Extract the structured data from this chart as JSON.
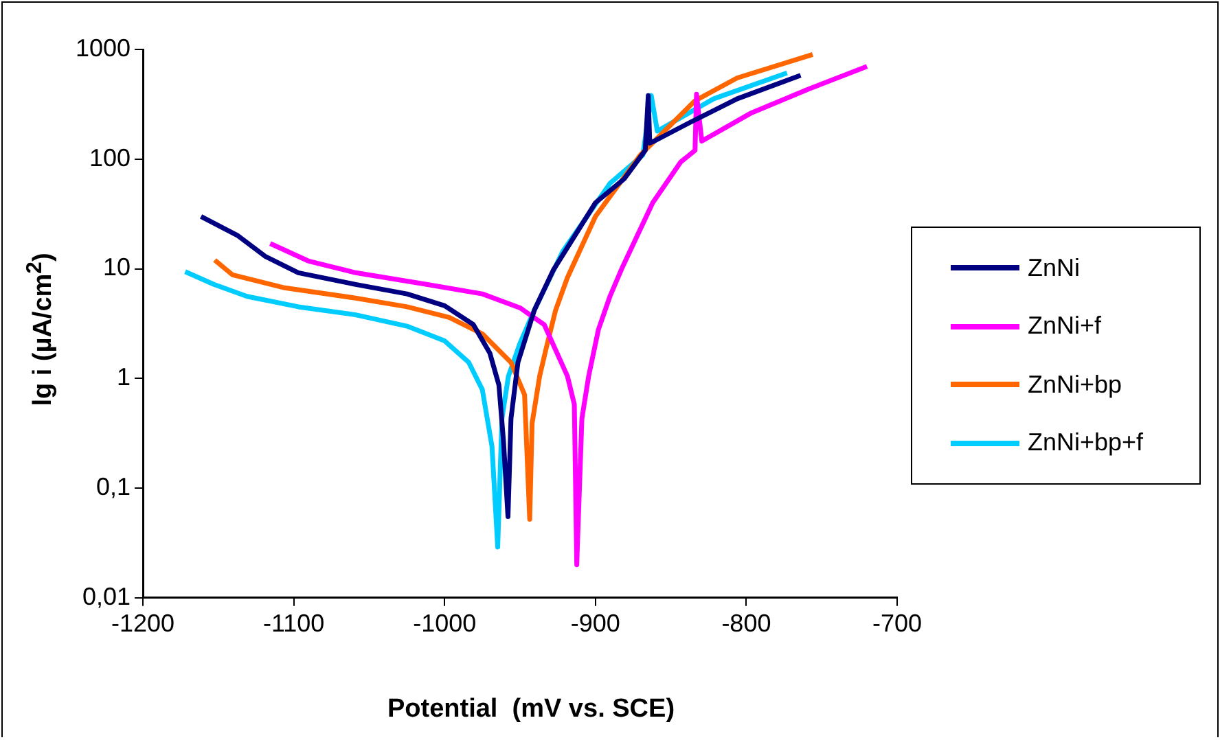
{
  "chart_data": {
    "type": "line",
    "xlabel": "Potential  (mV vs. SCE)",
    "ylabel": "lg i (µA/cm$^{2}$)",
    "log": true,
    "xlim": [
      -1200,
      -700
    ],
    "xticks": [
      -1200,
      -1100,
      -1000,
      -900,
      -800,
      -700
    ],
    "ylim": [
      0.01,
      1000
    ],
    "yticks": [
      {
        "value": 0.01,
        "label": "0,01"
      },
      {
        "value": 0.1,
        "label": "0,1"
      },
      1,
      10,
      100,
      1000
    ],
    "grid": false,
    "legend": "right",
    "marker": "none",
    "line_style": "solid",
    "series": [
      {
        "name": "ZnNi",
        "color": "#000080",
        "x": [
          -1161.5,
          -1137,
          -1119,
          -1097,
          -1059,
          -1025,
          -1000,
          -981,
          -970,
          -964,
          -961,
          -958,
          -956,
          -951.4,
          -940.5,
          -928,
          -900,
          -881,
          -867,
          -865,
          -864,
          -861,
          -837,
          -806,
          -764
        ],
        "values": [
          30,
          20,
          13,
          9.2,
          7.2,
          5.9,
          4.6,
          3.1,
          1.7,
          0.87,
          0.27,
          0.055,
          0.43,
          1.4,
          4.2,
          9.7,
          40,
          66,
          120,
          380,
          140,
          146,
          217,
          355,
          580
        ]
      },
      {
        "name": "ZnNi+f",
        "color": "#ff00ff",
        "x": [
          -1115.6,
          -1090.5,
          -1059,
          -1012,
          -975,
          -950,
          -934,
          -918.6,
          -914,
          -912.4,
          -909,
          -904.5,
          -898,
          -890.4,
          -882.6,
          -862,
          -843.5,
          -834,
          -833,
          -829.5,
          -796.6,
          -759,
          -720
        ],
        "values": [
          17,
          11.8,
          9.2,
          7.2,
          5.9,
          4.4,
          3.1,
          1.05,
          0.58,
          0.02,
          0.43,
          1.05,
          2.8,
          5.6,
          10,
          40,
          94,
          120,
          390,
          146,
          264,
          433,
          700
        ]
      },
      {
        "name": "ZnNi+bp",
        "color": "#ff6600",
        "x": [
          -1152.4,
          -1140.6,
          -1106,
          -1059,
          -1025,
          -997,
          -975,
          -956,
          -947,
          -943.6,
          -942,
          -937,
          -932.6,
          -926.4,
          -918.6,
          -900,
          -870,
          -834,
          -806,
          -756
        ],
        "values": [
          12,
          8.8,
          6.7,
          5.4,
          4.5,
          3.6,
          2.55,
          1.4,
          0.71,
          0.052,
          0.39,
          1.05,
          1.9,
          4.2,
          8.3,
          30,
          110,
          340,
          550,
          900
        ]
      },
      {
        "name": "ZnNi+bp+f",
        "color": "#00ccff",
        "x": [
          -1172,
          -1153,
          -1131,
          -1097,
          -1059,
          -1025,
          -1000,
          -984,
          -975,
          -968.6,
          -964.8,
          -962,
          -957.7,
          -950,
          -940.5,
          -921.7,
          -890.4,
          -868.6,
          -863,
          -859,
          -821.6,
          -773
        ],
        "values": [
          9.4,
          7.2,
          5.6,
          4.5,
          3.8,
          3,
          2.2,
          1.4,
          0.79,
          0.24,
          0.029,
          0.43,
          1.05,
          2.1,
          4.2,
          14.4,
          60,
          109,
          380,
          180,
          355,
          610
        ]
      }
    ]
  }
}
